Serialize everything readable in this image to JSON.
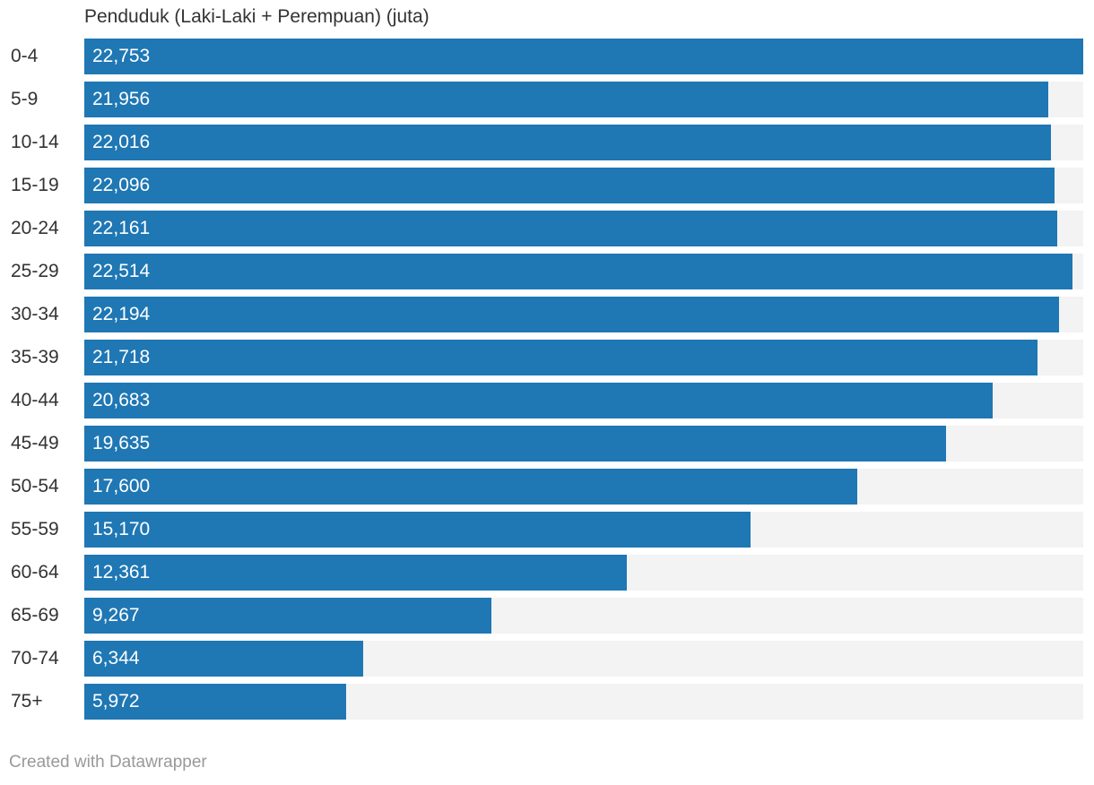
{
  "colors": {
    "bar": "#1f77b4",
    "track": "#f3f3f3",
    "label_text": "#333333",
    "value_text": "#ffffff",
    "footer_text": "#999999"
  },
  "chart_data": {
    "type": "bar",
    "orientation": "horizontal",
    "column_header": "Penduduk (Laki-Laki + Perempuan) (juta)",
    "categories": [
      "0-4",
      "5-9",
      "10-14",
      "15-19",
      "20-24",
      "25-29",
      "30-34",
      "35-39",
      "40-44",
      "45-49",
      "50-54",
      "55-59",
      "60-64",
      "65-69",
      "70-74",
      "75+"
    ],
    "values": [
      22.753,
      21.956,
      22.016,
      22.096,
      22.161,
      22.514,
      22.194,
      21.718,
      20.683,
      19.635,
      17.6,
      15.17,
      12.361,
      9.267,
      6.344,
      5.972
    ],
    "value_labels": [
      "22,753",
      "21,956",
      "22,016",
      "22,096",
      "22,161",
      "22,514",
      "22,194",
      "21,718",
      "20,683",
      "19,635",
      "17,600",
      "15,170",
      "12,361",
      "9,267",
      "6,344",
      "5,972"
    ],
    "xlim": [
      0,
      22.753
    ],
    "grid": false,
    "legend": "none"
  },
  "footer": {
    "credit": "Created with Datawrapper"
  }
}
